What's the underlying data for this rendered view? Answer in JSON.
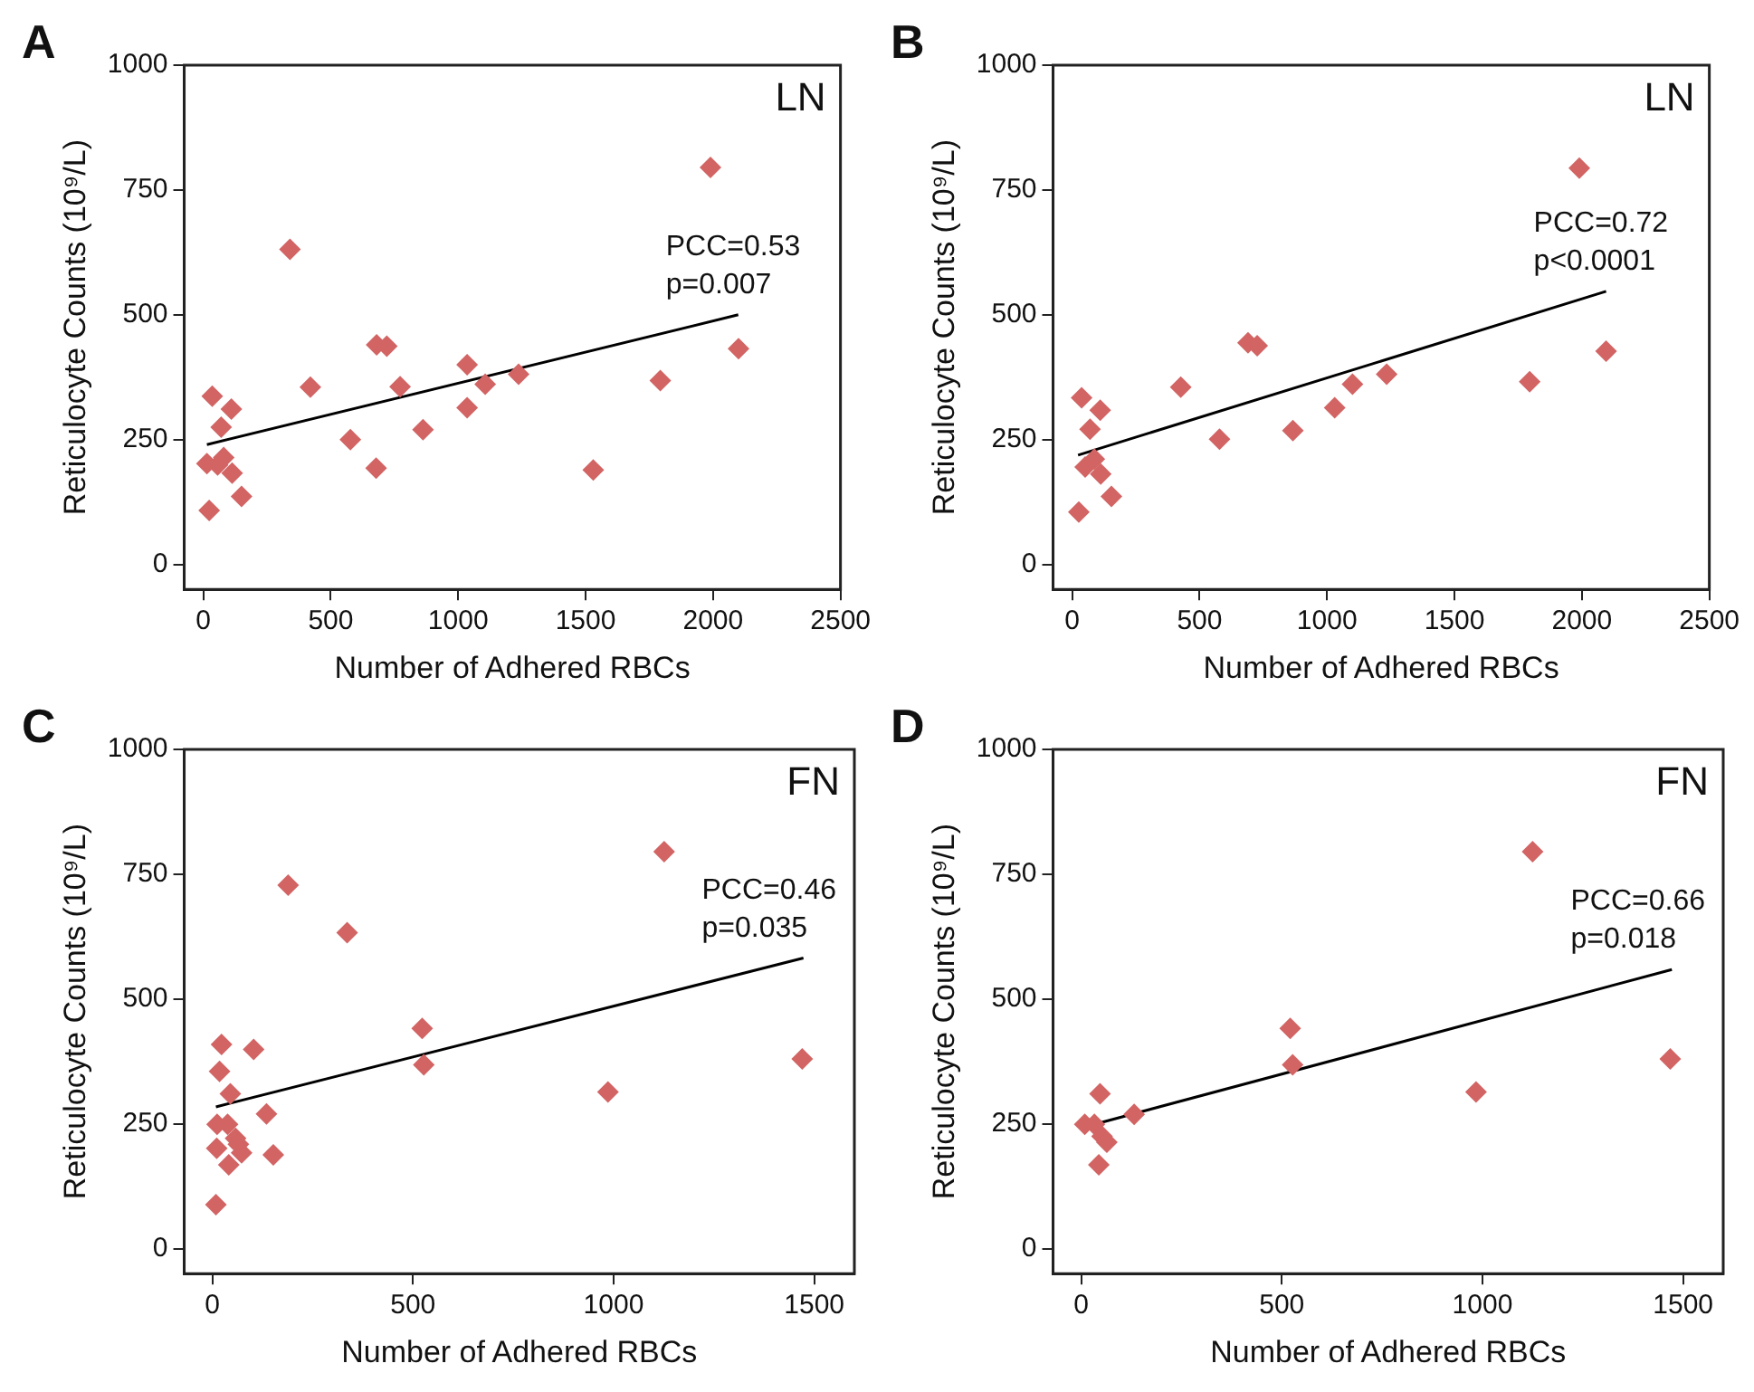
{
  "chart_data": [
    {
      "type": "scatter",
      "title": "A",
      "xlabel": "Number of Adhered RBCs",
      "ylabel": "Reticulocyte Counts (10⁹/L)",
      "xlim": [
        -75,
        2500
      ],
      "xticks": [
        0,
        500,
        1000,
        1500,
        2000,
        2500
      ],
      "ylim": [
        -50,
        1000
      ],
      "yticks": [
        0,
        250,
        500,
        750,
        1000
      ],
      "grid": false,
      "legend": false,
      "marker": "diamond",
      "annotations": [
        "LN",
        "PCC=0.53",
        "p=0.007"
      ],
      "series": [
        {
          "color": "#d26464",
          "x": [
            1990,
            340,
            2100,
            680,
            720,
            1035,
            772,
            420,
            1237,
            1106,
            1793,
            1035,
            862,
            577,
            678,
            1530,
            35,
            110,
            70,
            14,
            56,
            80,
            113,
            150,
            23
          ],
          "values": [
            795,
            631,
            432,
            440,
            437,
            400,
            356,
            355,
            381,
            361,
            368,
            314,
            270,
            250,
            193,
            189,
            337,
            311,
            275,
            202,
            199,
            214,
            183,
            136,
            108
          ]
        },
        {
          "type": "line",
          "color": "#000000",
          "marker": "none",
          "x": [
            14,
            2099
          ],
          "values": [
            240,
            500
          ]
        }
      ]
    },
    {
      "type": "scatter",
      "title": "B",
      "xlabel": "Number of Adhered RBCs",
      "ylabel": "Reticulocyte Counts (10⁹/L)",
      "xlim": [
        -75,
        2500
      ],
      "xticks": [
        0,
        500,
        1000,
        1500,
        2000,
        2500
      ],
      "ylim": [
        -50,
        1000
      ],
      "yticks": [
        0,
        250,
        500,
        750,
        1000
      ],
      "grid": false,
      "legend": false,
      "marker": "diamond",
      "annotations": [
        "LN",
        "PCC=0.72",
        "p<0.0001"
      ],
      "series": [
        {
          "color": "#d26464",
          "x": [
            1990,
            2095,
            690,
            726,
            426,
            1234,
            1100,
            1030,
            1795,
            866,
            578,
            37,
            110,
            70,
            87,
            51,
            112,
            154,
            26
          ],
          "values": [
            794,
            427,
            444,
            438,
            355,
            381,
            361,
            314,
            366,
            268,
            251,
            334,
            309,
            271,
            211,
            195,
            181,
            136,
            105
          ]
        },
        {
          "type": "line",
          "color": "#000000",
          "marker": "none",
          "x": [
            23,
            2095
          ],
          "values": [
            219,
            547
          ]
        }
      ]
    },
    {
      "type": "scatter",
      "title": "C",
      "xlabel": "Number of Adhered RBCs",
      "ylabel": "Reticulocyte Counts (10⁹/L)",
      "xlim": [
        -70,
        1600
      ],
      "xticks": [
        0,
        500,
        1000,
        1500
      ],
      "ylim": [
        -50,
        1000
      ],
      "yticks": [
        0,
        250,
        500,
        750,
        1000
      ],
      "grid": false,
      "legend": false,
      "marker": "diamond",
      "annotations": [
        "FN",
        "PCC=0.46",
        "p=0.035"
      ],
      "series": [
        {
          "color": "#d26464",
          "x": [
            1126,
            189,
            336,
            523,
            527,
            1470,
            986,
            23,
            103,
            18,
            45,
            135,
            12,
            38,
            58,
            65,
            73,
            152,
            11,
            41,
            9
          ],
          "values": [
            795,
            728,
            633,
            441,
            368,
            380,
            314,
            409,
            399,
            355,
            310,
            270,
            249,
            249,
            221,
            209,
            192,
            188,
            201,
            168,
            88
          ]
        },
        {
          "type": "line",
          "color": "#000000",
          "marker": "none",
          "x": [
            9,
            1473
          ],
          "values": [
            284,
            582
          ]
        }
      ]
    },
    {
      "type": "scatter",
      "title": "D",
      "xlabel": "Number of Adhered RBCs",
      "ylabel": "Reticulocyte Counts (10⁹/L)",
      "xlim": [
        -70,
        1600
      ],
      "xticks": [
        0,
        500,
        1000,
        1500
      ],
      "ylim": [
        -50,
        1000
      ],
      "yticks": [
        0,
        250,
        500,
        750,
        1000
      ],
      "grid": false,
      "legend": false,
      "marker": "diamond",
      "annotations": [
        "FN",
        "PCC=0.66",
        "p=0.018"
      ],
      "series": [
        {
          "color": "#d26464",
          "x": [
            1125,
            521,
            527,
            1468,
            984,
            47,
            132,
            9,
            33,
            52,
            64,
            44
          ],
          "values": [
            795,
            441,
            368,
            380,
            314,
            310,
            269,
            249,
            249,
            225,
            213,
            168
          ]
        },
        {
          "type": "line",
          "color": "#000000",
          "marker": "none",
          "x": [
            14,
            1472
          ],
          "values": [
            245,
            559
          ]
        }
      ]
    }
  ]
}
